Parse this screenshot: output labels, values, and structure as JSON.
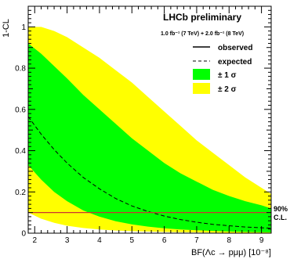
{
  "chart_data": {
    "type": "line",
    "title": "LHCb preliminary",
    "subtitle": "1.0 fb⁻¹ (7 TeV) + 2.0 fb⁻¹ (8 TeV)",
    "xlabel": "BF(Λc → pμμ) [10⁻⁸]",
    "ylabel": "1-CL",
    "xlim": [
      1.8,
      9.3
    ],
    "ylim": [
      0,
      1.1
    ],
    "x_ticks": [
      "2",
      "3",
      "4",
      "5",
      "6",
      "7",
      "8",
      "9"
    ],
    "y_ticks": [
      "0",
      "0.2",
      "0.4",
      "0.6",
      "0.8",
      "1"
    ],
    "legend": {
      "position": "top-right",
      "observed_label": "observed",
      "expected_label": "expected",
      "band1_label": "± 1 σ",
      "band2_label": "± 2 σ"
    },
    "colors": {
      "band1": "#00ff00",
      "band2": "#ffff00",
      "threshold": "#cc3333"
    },
    "threshold": {
      "value": 0.1,
      "label_line1": "90%",
      "label_line2": "C.L."
    },
    "expected": {
      "x": [
        1.8,
        2.2,
        2.6,
        3.0,
        3.5,
        4.0,
        4.5,
        5.0,
        5.5,
        6.0,
        6.5,
        7.0,
        7.5,
        8.0,
        8.5,
        9.0,
        9.3
      ],
      "y": [
        0.565,
        0.48,
        0.405,
        0.34,
        0.27,
        0.215,
        0.168,
        0.132,
        0.105,
        0.083,
        0.066,
        0.053,
        0.043,
        0.036,
        0.03,
        0.026,
        0.024
      ]
    },
    "band1_upper": {
      "x": [
        1.8,
        2.2,
        2.6,
        3.0,
        3.5,
        4.0,
        4.5,
        5.0,
        5.5,
        6.0,
        6.5,
        7.0,
        7.5,
        8.0,
        8.5,
        9.0,
        9.3
      ],
      "y": [
        0.92,
        0.87,
        0.81,
        0.75,
        0.67,
        0.6,
        0.53,
        0.46,
        0.4,
        0.34,
        0.29,
        0.25,
        0.21,
        0.18,
        0.155,
        0.135,
        0.12
      ]
    },
    "band1_lower": {
      "x": [
        1.8,
        2.2,
        2.6,
        3.0,
        3.5,
        4.0,
        4.5,
        5.0,
        5.5,
        6.0,
        6.5,
        7.0,
        7.5,
        8.0,
        8.5,
        9.0,
        9.3
      ],
      "y": [
        0.33,
        0.26,
        0.2,
        0.155,
        0.11,
        0.08,
        0.058,
        0.043,
        0.032,
        0.024,
        0.018,
        0.014,
        0.011,
        0.008,
        0.006,
        0.005,
        0.004
      ]
    },
    "band2_upper": {
      "x": [
        1.8,
        2.2,
        2.6,
        3.0,
        3.5,
        4.0,
        4.5,
        5.0,
        5.5,
        6.0,
        6.5,
        7.0,
        7.5,
        8.0,
        8.5,
        9.0,
        9.3
      ],
      "y": [
        1.0,
        1.0,
        0.98,
        0.95,
        0.9,
        0.85,
        0.79,
        0.73,
        0.66,
        0.59,
        0.52,
        0.45,
        0.39,
        0.33,
        0.27,
        0.22,
        0.19
      ]
    },
    "band2_lower": {
      "x": [
        1.8,
        2.2,
        2.6,
        3.0,
        3.5,
        4.0,
        4.5,
        5.0,
        5.5,
        6.0,
        6.5,
        7.0,
        7.5,
        8.0,
        8.5,
        9.0,
        9.3
      ],
      "y": [
        0.1,
        0.07,
        0.05,
        0.036,
        0.025,
        0.018,
        0.013,
        0.01,
        0.008,
        0.006,
        0.005,
        0.004,
        0.003,
        0.002,
        0.002,
        0.002,
        0.001
      ]
    }
  }
}
